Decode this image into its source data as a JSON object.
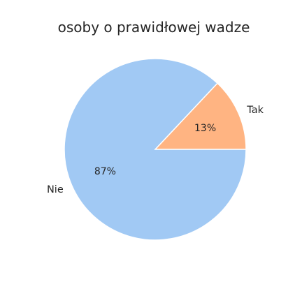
{
  "chart_data": {
    "type": "pie",
    "title": "osoby o prawidłowej wadze",
    "labels": [
      "Tak",
      "Nie"
    ],
    "values": [
      13,
      87
    ],
    "percent_labels": [
      "13%",
      "87%"
    ],
    "colors": [
      "#ffb482",
      "#a1c9f4"
    ],
    "legend": "none"
  }
}
